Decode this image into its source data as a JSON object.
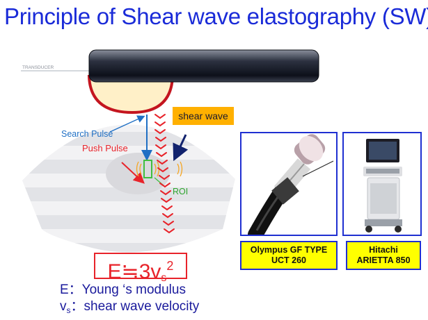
{
  "title": "Principle of Shear wave elastography (SW)",
  "diagram": {
    "transducer_label": "TRANSDUCER",
    "search_pulse_label": "Search Pulse",
    "push_pulse_label": "Push Pulse",
    "shear_wave_label": "shear wave",
    "roi_label": "ROI",
    "colors": {
      "search_pulse": "#1f6fc4",
      "push_pulse": "#e8232a",
      "shear_wave_box_bg": "#ffb000",
      "roi": "#3fbf3f",
      "transducer_face": "#d6202c"
    }
  },
  "formula": {
    "main": "E≒3v",
    "subscript": "s",
    "superscript": "2",
    "line1": "E：Young ‘s modulus",
    "line2_var": "v",
    "line2_sub": "s",
    "line2_rest": "：shear wave velocity"
  },
  "devices": [
    {
      "caption_line1": "Olympus GF TYPE",
      "caption_line2": "UCT 260"
    },
    {
      "caption_line1": "Hitachi",
      "caption_line2": "ARIETTA 850"
    }
  ]
}
